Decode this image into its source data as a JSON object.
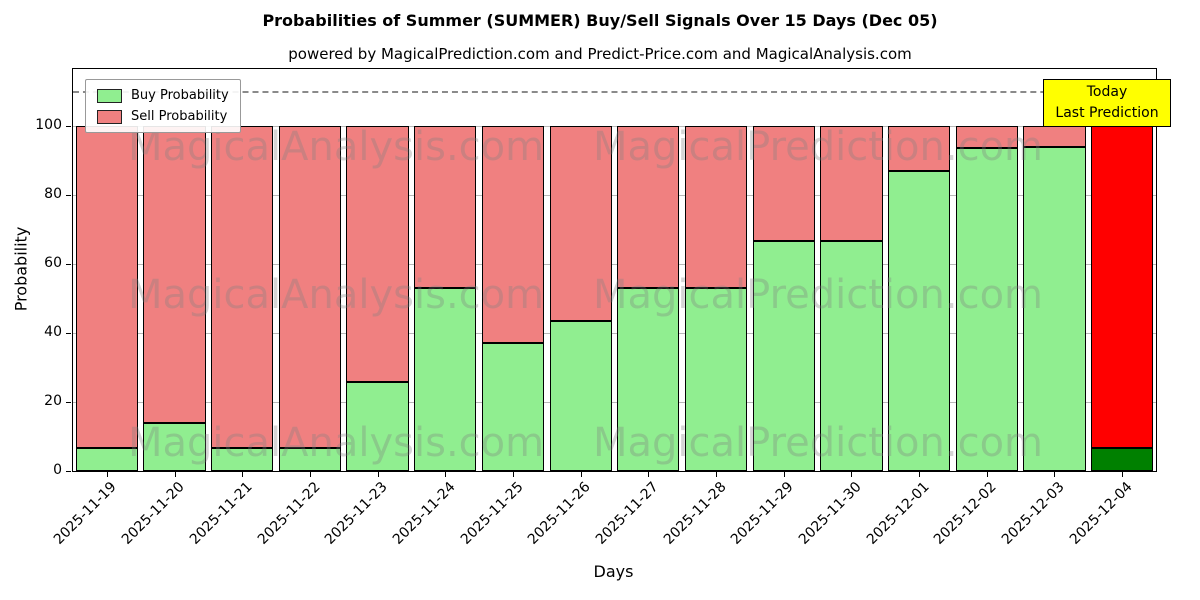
{
  "header": {
    "title": "Probabilities of Summer (SUMMER) Buy/Sell Signals Over 15 Days (Dec 05)",
    "subtitle": "powered by MagicalPrediction.com and Predict-Price.com and MagicalAnalysis.com"
  },
  "chart_data": {
    "type": "bar",
    "stacked": true,
    "title": "Probabilities of Summer (SUMMER) Buy/Sell Signals Over 15 Days (Dec 05)",
    "subtitle": "powered by MagicalPrediction.com and Predict-Price.com and MagicalAnalysis.com",
    "xlabel": "Days",
    "ylabel": "Probability",
    "ylim": [
      0,
      116.5
    ],
    "yticks": [
      0,
      20,
      40,
      60,
      80,
      100
    ],
    "grid": true,
    "dashed_line_y": 110,
    "categories": [
      "2025-11-19",
      "2025-11-20",
      "2025-11-21",
      "2025-11-22",
      "2025-11-23",
      "2025-11-24",
      "2025-11-25",
      "2025-11-26",
      "2025-11-27",
      "2025-11-28",
      "2025-11-29",
      "2025-11-30",
      "2025-12-01",
      "2025-12-02",
      "2025-12-03",
      "2025-12-04"
    ],
    "series": [
      {
        "name": "Buy Probability",
        "color": "#90EE90",
        "values": [
          6.7,
          13.9,
          6.7,
          6.7,
          25.9,
          53.1,
          37.0,
          43.5,
          53.1,
          53.1,
          66.7,
          66.7,
          87.0,
          93.5,
          94.0,
          6.7
        ]
      },
      {
        "name": "Sell Probability",
        "color": "#F08080",
        "values": [
          93.3,
          86.1,
          93.3,
          93.3,
          74.1,
          46.9,
          63.0,
          56.5,
          46.9,
          46.9,
          33.3,
          33.3,
          13.0,
          6.5,
          6.0,
          93.3
        ]
      }
    ],
    "highlight": {
      "index": 15,
      "buy_color": "#008000",
      "sell_color": "#FF0000"
    },
    "legend": {
      "position": "upper-left",
      "entries": [
        {
          "label": "Buy Probability",
          "color": "#90EE90"
        },
        {
          "label": "Sell Probability",
          "color": "#F08080"
        }
      ]
    },
    "annotation": {
      "lines": [
        "Today",
        "Last Prediction"
      ],
      "bg": "#FFFF00"
    },
    "watermarks": [
      "MagicalAnalysis.com",
      "MagicalPrediction.com"
    ]
  }
}
